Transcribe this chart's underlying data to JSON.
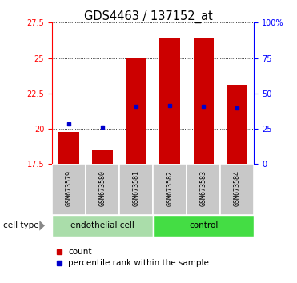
{
  "title": "GDS4463 / 137152_at",
  "samples": [
    "GSM673579",
    "GSM673580",
    "GSM673581",
    "GSM673582",
    "GSM673583",
    "GSM673584"
  ],
  "bar_bottom": 17.5,
  "bar_top": [
    19.8,
    18.5,
    25.0,
    26.4,
    26.4,
    23.1
  ],
  "percentile_values": [
    20.35,
    20.1,
    21.6,
    21.65,
    21.6,
    21.5
  ],
  "ylim_left": [
    17.5,
    27.5
  ],
  "ylim_right": [
    0,
    100
  ],
  "yticks_left": [
    17.5,
    20.0,
    22.5,
    25.0,
    27.5
  ],
  "ytick_labels_left": [
    "17.5",
    "20",
    "22.5",
    "25",
    "27.5"
  ],
  "yticks_right": [
    0,
    25,
    50,
    75,
    100
  ],
  "ytick_labels_right": [
    "0",
    "25",
    "50",
    "75",
    "100%"
  ],
  "bar_color": "#cc0000",
  "percentile_color": "#0000cc",
  "label_bg": "#c8c8c8",
  "endothelial_bg": "#aaddaa",
  "control_bg": "#44dd44",
  "legend_count_label": "count",
  "legend_pct_label": "percentile rank within the sample",
  "cell_type_label": "cell type",
  "n_endothelial": 3,
  "n_control": 3
}
